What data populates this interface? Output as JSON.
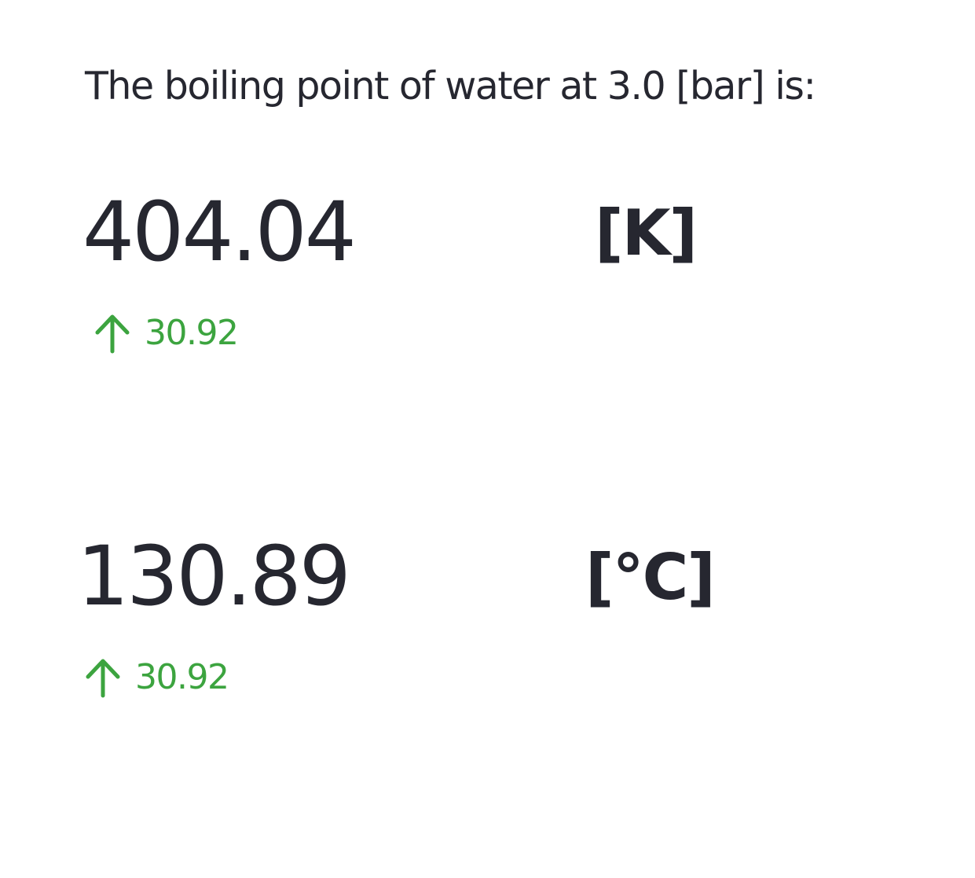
{
  "intro_text": "The boiling point of water at 3.0 [bar] is:",
  "metrics": [
    {
      "value": "404.04",
      "delta": "30.92",
      "delta_direction": "up",
      "unit": "[K]"
    },
    {
      "value": "130.89",
      "delta": "30.92",
      "delta_direction": "up",
      "unit": "[°C]"
    }
  ],
  "colors": {
    "text": "#262730",
    "delta_positive": "#3ca43f",
    "background": "#ffffff"
  },
  "icons": {
    "delta": "arrow-up-icon"
  }
}
